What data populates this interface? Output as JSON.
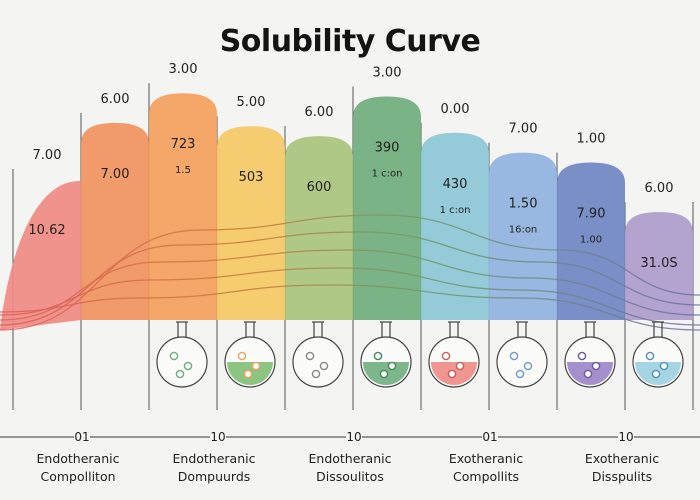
{
  "chart_data": {
    "type": "area",
    "title": "Solubility Curve",
    "columns": [
      {
        "top_label": "7.00",
        "mid_labels": [
          "10.62"
        ],
        "value": 7.0,
        "color": "#ef8a84"
      },
      {
        "top_label": "6.00",
        "mid_labels": [
          "7.00"
        ],
        "value": 8.7,
        "color": "#f0935e"
      },
      {
        "top_label": "3.00",
        "mid_labels": [
          "723",
          "1.5"
        ],
        "value": 9.6,
        "color": "#f3a05c"
      },
      {
        "top_label": "5.00",
        "mid_labels": [
          "503"
        ],
        "value": 8.6,
        "color": "#f5c865"
      },
      {
        "top_label": "6.00",
        "mid_labels": [
          "600"
        ],
        "value": 8.3,
        "color": "#a9c37d"
      },
      {
        "top_label": "3.00",
        "mid_labels": [
          "390",
          "1 c:on"
        ],
        "value": 9.5,
        "color": "#6fae7d"
      },
      {
        "top_label": "0.00",
        "mid_labels": [
          "430",
          "1 c:on"
        ],
        "value": 8.4,
        "color": "#8cc7d6"
      },
      {
        "top_label": "7.00",
        "mid_labels": [
          "1.50",
          "16:on"
        ],
        "value": 7.8,
        "color": "#8fb2df"
      },
      {
        "top_label": "1.00",
        "mid_labels": [
          "7.90",
          "1.00"
        ],
        "value": 7.5,
        "color": "#6f86c3"
      },
      {
        "top_label": "6.00",
        "mid_labels": [
          "31.0S"
        ],
        "value": 6.0,
        "color": "#ad9bcc"
      }
    ],
    "flasks": [
      {
        "liquid": "",
        "bubbles": "#6fae7d"
      },
      {
        "liquid": "#7fbf73",
        "bubbles": "#f3a05c"
      },
      {
        "liquid": "",
        "bubbles": "#888888"
      },
      {
        "liquid": "#6fae7d",
        "bubbles": "#3f8a56"
      },
      {
        "liquid": "#ef8a84",
        "bubbles": "#c95c5c"
      },
      {
        "liquid": "",
        "bubbles": "#6f96d6"
      },
      {
        "liquid": "#9b84c9",
        "bubbles": "#6d54a6"
      },
      {
        "liquid": "#9bd0e0",
        "bubbles": "#4f8fbf"
      }
    ],
    "x_ticks": [
      "01",
      "10",
      "10",
      "01",
      "10"
    ],
    "bottom_labels": [
      [
        "Endotheranic",
        "Compolliton"
      ],
      [
        "Endotheranic",
        "Dompuurds"
      ],
      [
        "Endotheranic",
        "Dissoulitos"
      ],
      [
        "Exotheranic",
        "Compollits"
      ],
      [
        "Exotheranic",
        "Disspulits"
      ]
    ]
  }
}
